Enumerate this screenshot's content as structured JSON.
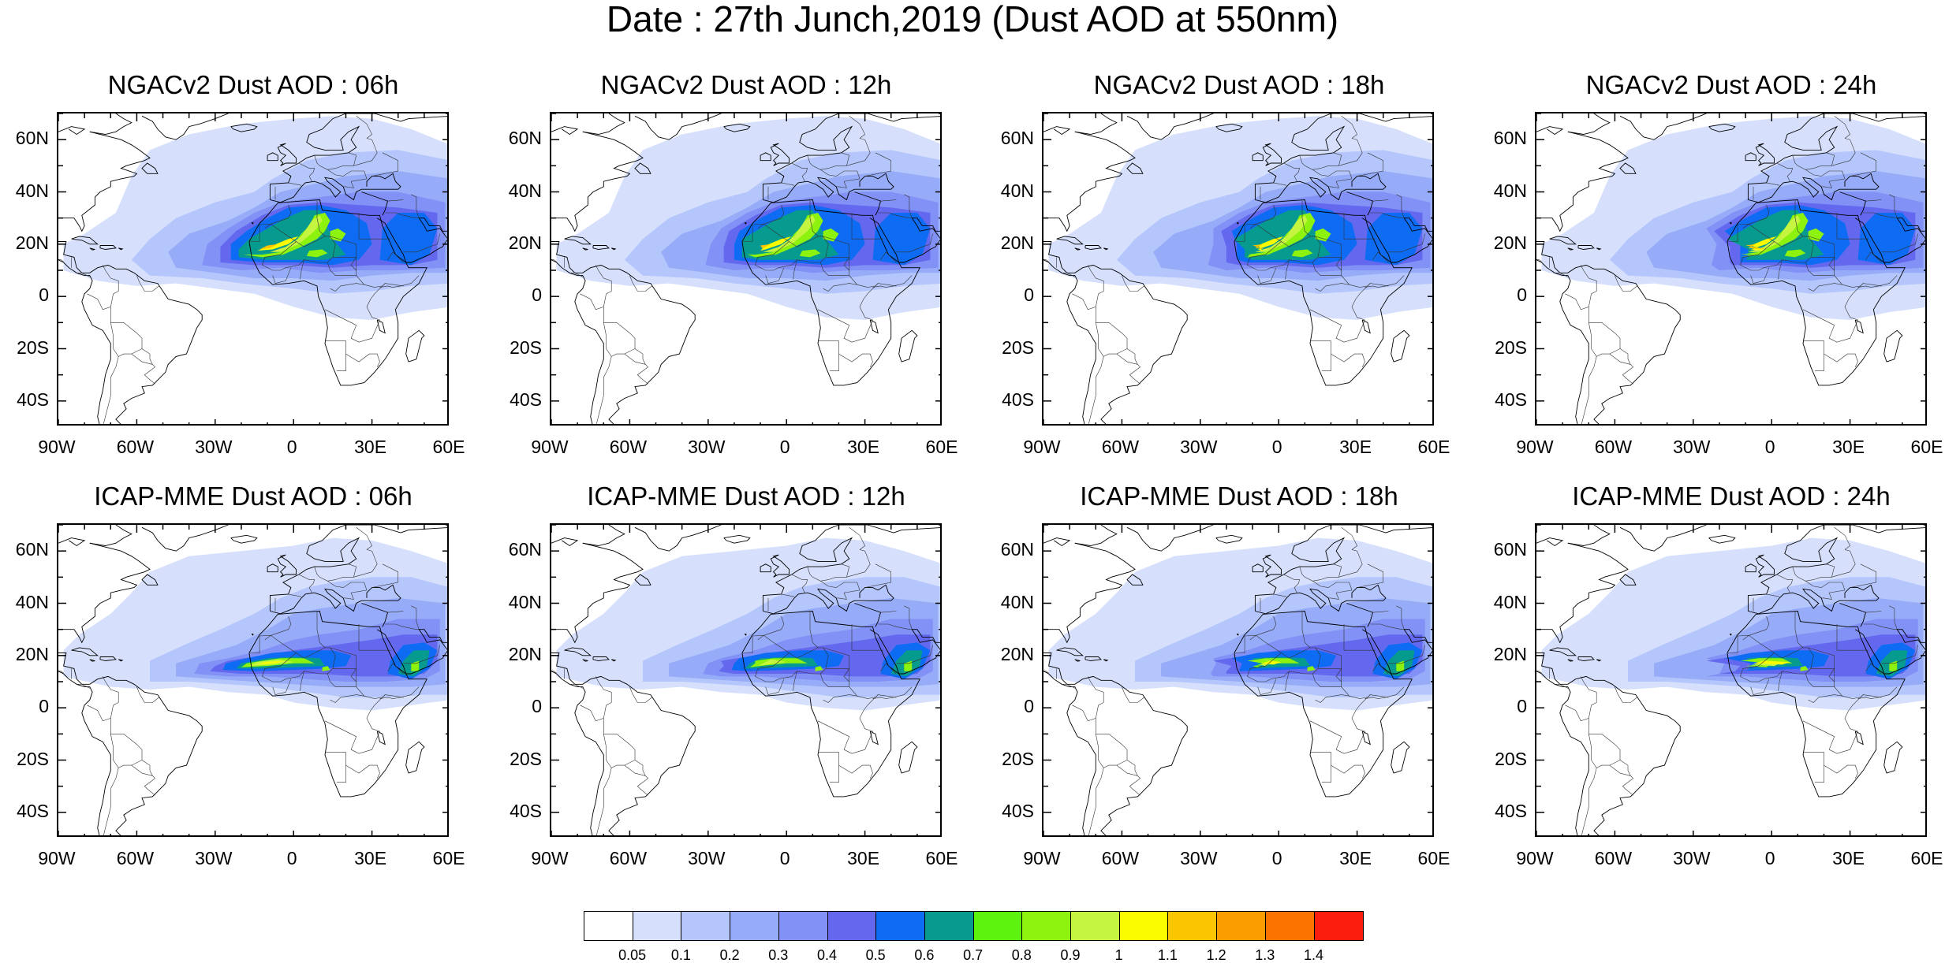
{
  "title": "Date : 27th Junch,2019 (Dust AOD at 550nm)",
  "axes": {
    "lat_labels": [
      "60N",
      "40N",
      "20N",
      "0",
      "20S",
      "40S"
    ],
    "lat_values": [
      60,
      40,
      20,
      0,
      -20,
      -40
    ],
    "lon_labels": [
      "90W",
      "60W",
      "30W",
      "0",
      "30E",
      "60E"
    ],
    "lon_values": [
      -90,
      -60,
      -30,
      0,
      30,
      60
    ],
    "lat_range": [
      -50,
      70
    ],
    "lon_range": [
      -90,
      60
    ]
  },
  "panels": [
    {
      "title": "NGACv2 Dust AOD : 06h",
      "model": "NGACv2",
      "hour": 6
    },
    {
      "title": "NGACv2 Dust AOD : 12h",
      "model": "NGACv2",
      "hour": 12
    },
    {
      "title": "NGACv2 Dust AOD : 18h",
      "model": "NGACv2",
      "hour": 18
    },
    {
      "title": "NGACv2 Dust AOD : 24h",
      "model": "NGACv2",
      "hour": 24
    },
    {
      "title": "ICAP-MME Dust AOD : 06h",
      "model": "ICAP-MME",
      "hour": 6
    },
    {
      "title": "ICAP-MME Dust AOD : 12h",
      "model": "ICAP-MME",
      "hour": 12
    },
    {
      "title": "ICAP-MME Dust AOD : 18h",
      "model": "ICAP-MME",
      "hour": 18
    },
    {
      "title": "ICAP-MME Dust AOD : 24h",
      "model": "ICAP-MME",
      "hour": 24
    }
  ],
  "colorbar": {
    "ticks": [
      "0.05",
      "0.1",
      "0.2",
      "0.3",
      "0.4",
      "0.5",
      "0.6",
      "0.7",
      "0.8",
      "0.9",
      "1",
      "1.1",
      "1.2",
      "1.3",
      "1.4"
    ],
    "colors": [
      "#ffffff",
      "#d6e0fd",
      "#b4c6fb",
      "#97acf8",
      "#8191f5",
      "#6468ee",
      "#0d6cf3",
      "#079a8f",
      "#5ef20f",
      "#8ef20f",
      "#c6f541",
      "#fbfb00",
      "#fbc500",
      "#fb9c00",
      "#fb7400",
      "#fb1e0e"
    ]
  }
}
